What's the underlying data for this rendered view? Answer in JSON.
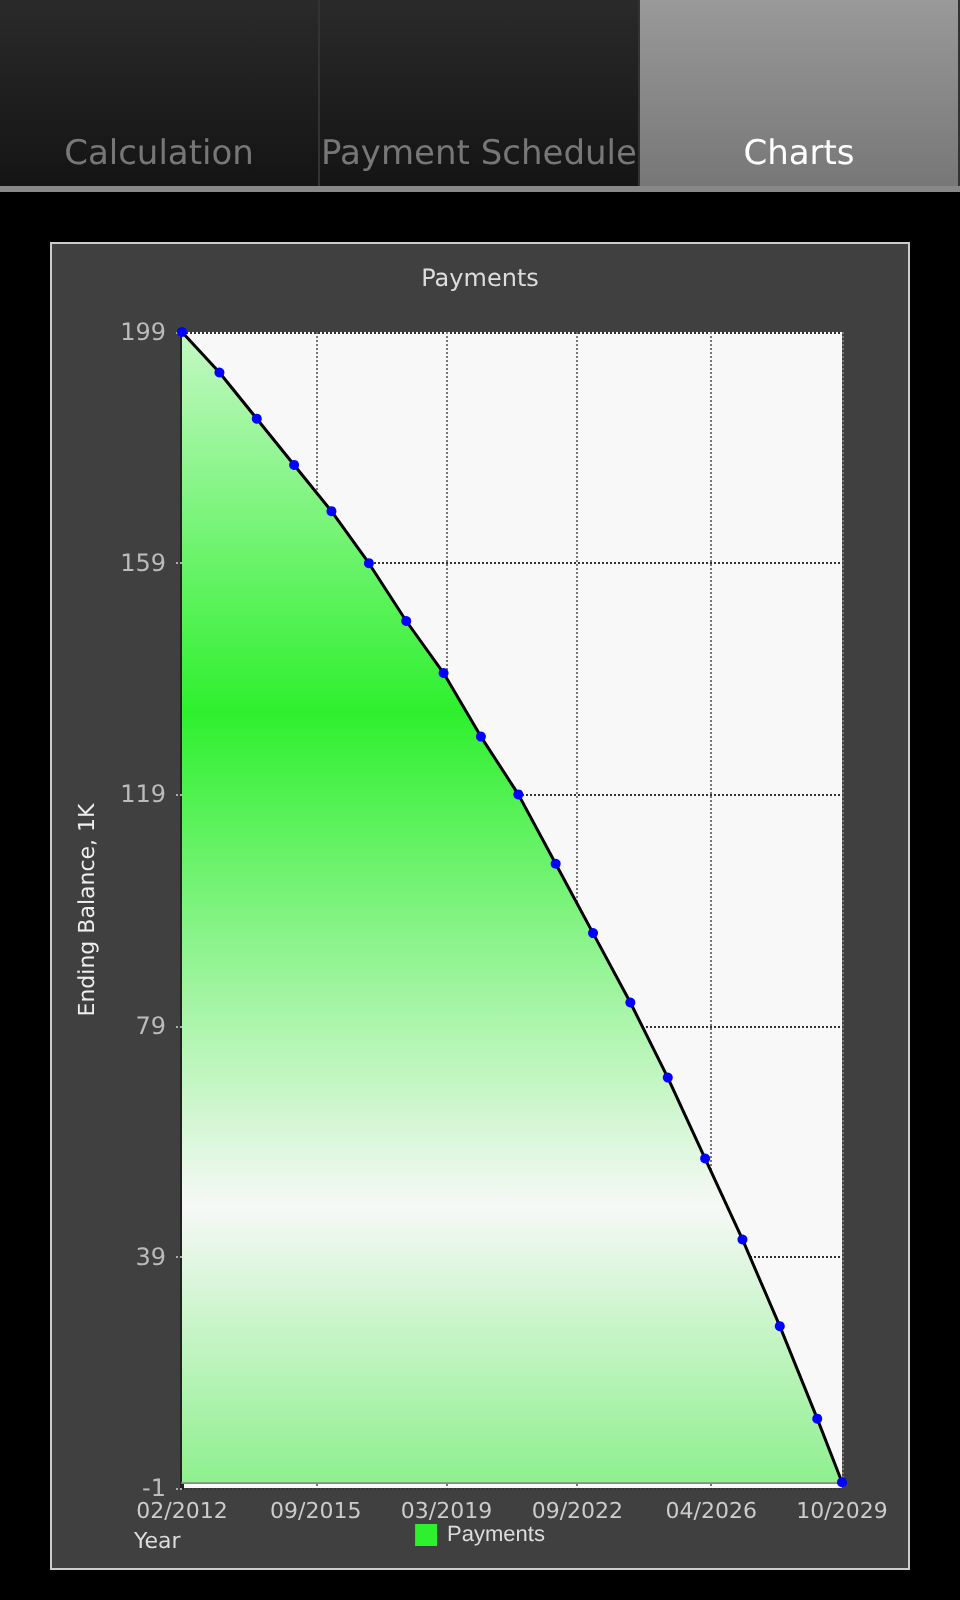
{
  "chart_data": {
    "type": "area",
    "title": "Payments",
    "xlabel": "Year",
    "ylabel": "Ending Balance, 1K",
    "annotations": [
      "Calculation",
      "Payment Schedule",
      "Charts"
    ],
    "x": [
      "2012-02",
      "2013-02",
      "2014-02",
      "2015-02",
      "2016-02",
      "2017-02",
      "2018-02",
      "2019-02",
      "2020-02",
      "2021-02",
      "2022-02",
      "2023-02",
      "2024-02",
      "2025-02",
      "2026-02",
      "2027-02",
      "2028-02",
      "2029-02",
      "2029-10"
    ],
    "series": [
      {
        "name": "Payments",
        "color": "#2ef02e",
        "values": [
          199,
          192,
          184,
          176,
          168,
          159,
          149,
          140,
          129,
          119,
          107,
          95,
          83,
          70,
          56,
          42,
          27,
          11,
          0
        ]
      }
    ],
    "xlim": [
      "2012-02",
      "2029-10"
    ],
    "xticks": [
      {
        "value": "2012-02",
        "label": "02/2012"
      },
      {
        "value": "2015-09",
        "label": "09/2015"
      },
      {
        "value": "2019-03",
        "label": "03/2019"
      },
      {
        "value": "2022-09",
        "label": "09/2022"
      },
      {
        "value": "2026-04",
        "label": "04/2026"
      },
      {
        "value": "2029-10",
        "label": "10/2029"
      }
    ],
    "ylim": [
      -1,
      199
    ],
    "yticks": [
      -1,
      39,
      79,
      119,
      159,
      199
    ],
    "grid": true,
    "legend": "bottom",
    "marker": "circle"
  }
}
